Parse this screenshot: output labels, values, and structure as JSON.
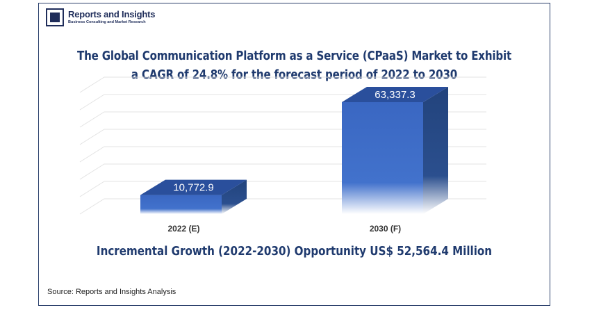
{
  "logo": {
    "name": "Reports and Insights",
    "tagline": "Business Consulting and Market Research"
  },
  "chart_data": {
    "type": "bar",
    "title": "The Global Communication Platform as a Service (CPaaS) Market to Exhibit a CAGR of 24.8% for the forecast period of 2022 to 2030",
    "categories": [
      "2022 (E)",
      "2030 (F)"
    ],
    "values": [
      10772.9,
      63337.3
    ],
    "value_labels": [
      "10,772.9",
      "63,337.3"
    ],
    "xlabel": "",
    "ylabel": "",
    "ylim": [
      0,
      70000
    ],
    "grid": true,
    "legend": "none",
    "annotation": "Incremental Growth (2022-2030) Opportunity US$ 52,564.4 Million"
  },
  "source": "Source: Reports and Insights Analysis",
  "colors": {
    "bar_front": "#3d6cc6",
    "bar_top": "#2a4f9c",
    "bar_side": "#24467f",
    "title": "#1f3a6e",
    "frame": "#2b3f6b"
  }
}
